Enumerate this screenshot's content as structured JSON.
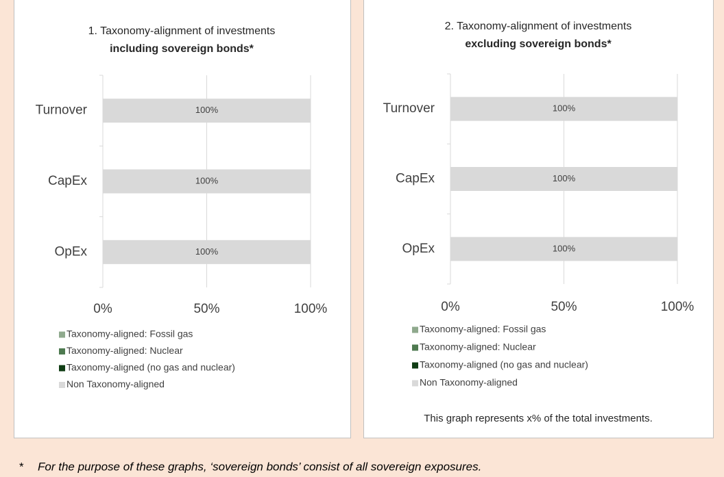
{
  "chart_data": [
    {
      "type": "bar",
      "orientation": "horizontal",
      "stacked": true,
      "title": "1. Taxonomy-alignment of investments",
      "subtitle": "including sovereign bonds*",
      "categories": [
        "Turnover",
        "CapEx",
        "OpEx"
      ],
      "series": [
        {
          "name": "Taxonomy-aligned: Fossil gas",
          "color": "#8fa98d",
          "values": [
            0,
            0,
            0
          ]
        },
        {
          "name": "Taxonomy-aligned: Nuclear",
          "color": "#4e7a50",
          "values": [
            0,
            0,
            0
          ]
        },
        {
          "name": "Taxonomy-aligned (no gas and nuclear)",
          "color": "#103d14",
          "values": [
            0,
            0,
            0
          ]
        },
        {
          "name": "Non Taxonomy-aligned",
          "color": "#d9d9d9",
          "values": [
            100,
            100,
            100
          ],
          "value_labels": [
            "100%",
            "100%",
            "100%"
          ]
        }
      ],
      "xlim": [
        0,
        100
      ],
      "xticks": [
        {
          "value": 0,
          "label": "0%"
        },
        {
          "value": 50,
          "label": "50%"
        },
        {
          "value": 100,
          "label": "100%"
        }
      ],
      "grid": true,
      "legend": "bottom"
    },
    {
      "type": "bar",
      "orientation": "horizontal",
      "stacked": true,
      "title": "2. Taxonomy-alignment of investments",
      "subtitle": "excluding sovereign bonds*",
      "categories": [
        "Turnover",
        "CapEx",
        "OpEx"
      ],
      "series": [
        {
          "name": "Taxonomy-aligned: Fossil gas",
          "color": "#8fa98d",
          "values": [
            0,
            0,
            0
          ]
        },
        {
          "name": "Taxonomy-aligned: Nuclear",
          "color": "#4e7a50",
          "values": [
            0,
            0,
            0
          ]
        },
        {
          "name": "Taxonomy-aligned (no gas and nuclear)",
          "color": "#103d14",
          "values": [
            0,
            0,
            0
          ]
        },
        {
          "name": "Non Taxonomy-aligned",
          "color": "#d9d9d9",
          "values": [
            100,
            100,
            100
          ],
          "value_labels": [
            "100%",
            "100%",
            "100%"
          ]
        }
      ],
      "xlim": [
        0,
        100
      ],
      "xticks": [
        {
          "value": 0,
          "label": "0%"
        },
        {
          "value": 50,
          "label": "50%"
        },
        {
          "value": 100,
          "label": "100%"
        }
      ],
      "grid": true,
      "legend": "bottom",
      "annotation": "This graph represents x% of the total investments."
    }
  ],
  "footnote": {
    "marker": "*",
    "text": "For the purpose of these graphs, ‘sovereign bonds’ consist of all sovereign exposures."
  }
}
